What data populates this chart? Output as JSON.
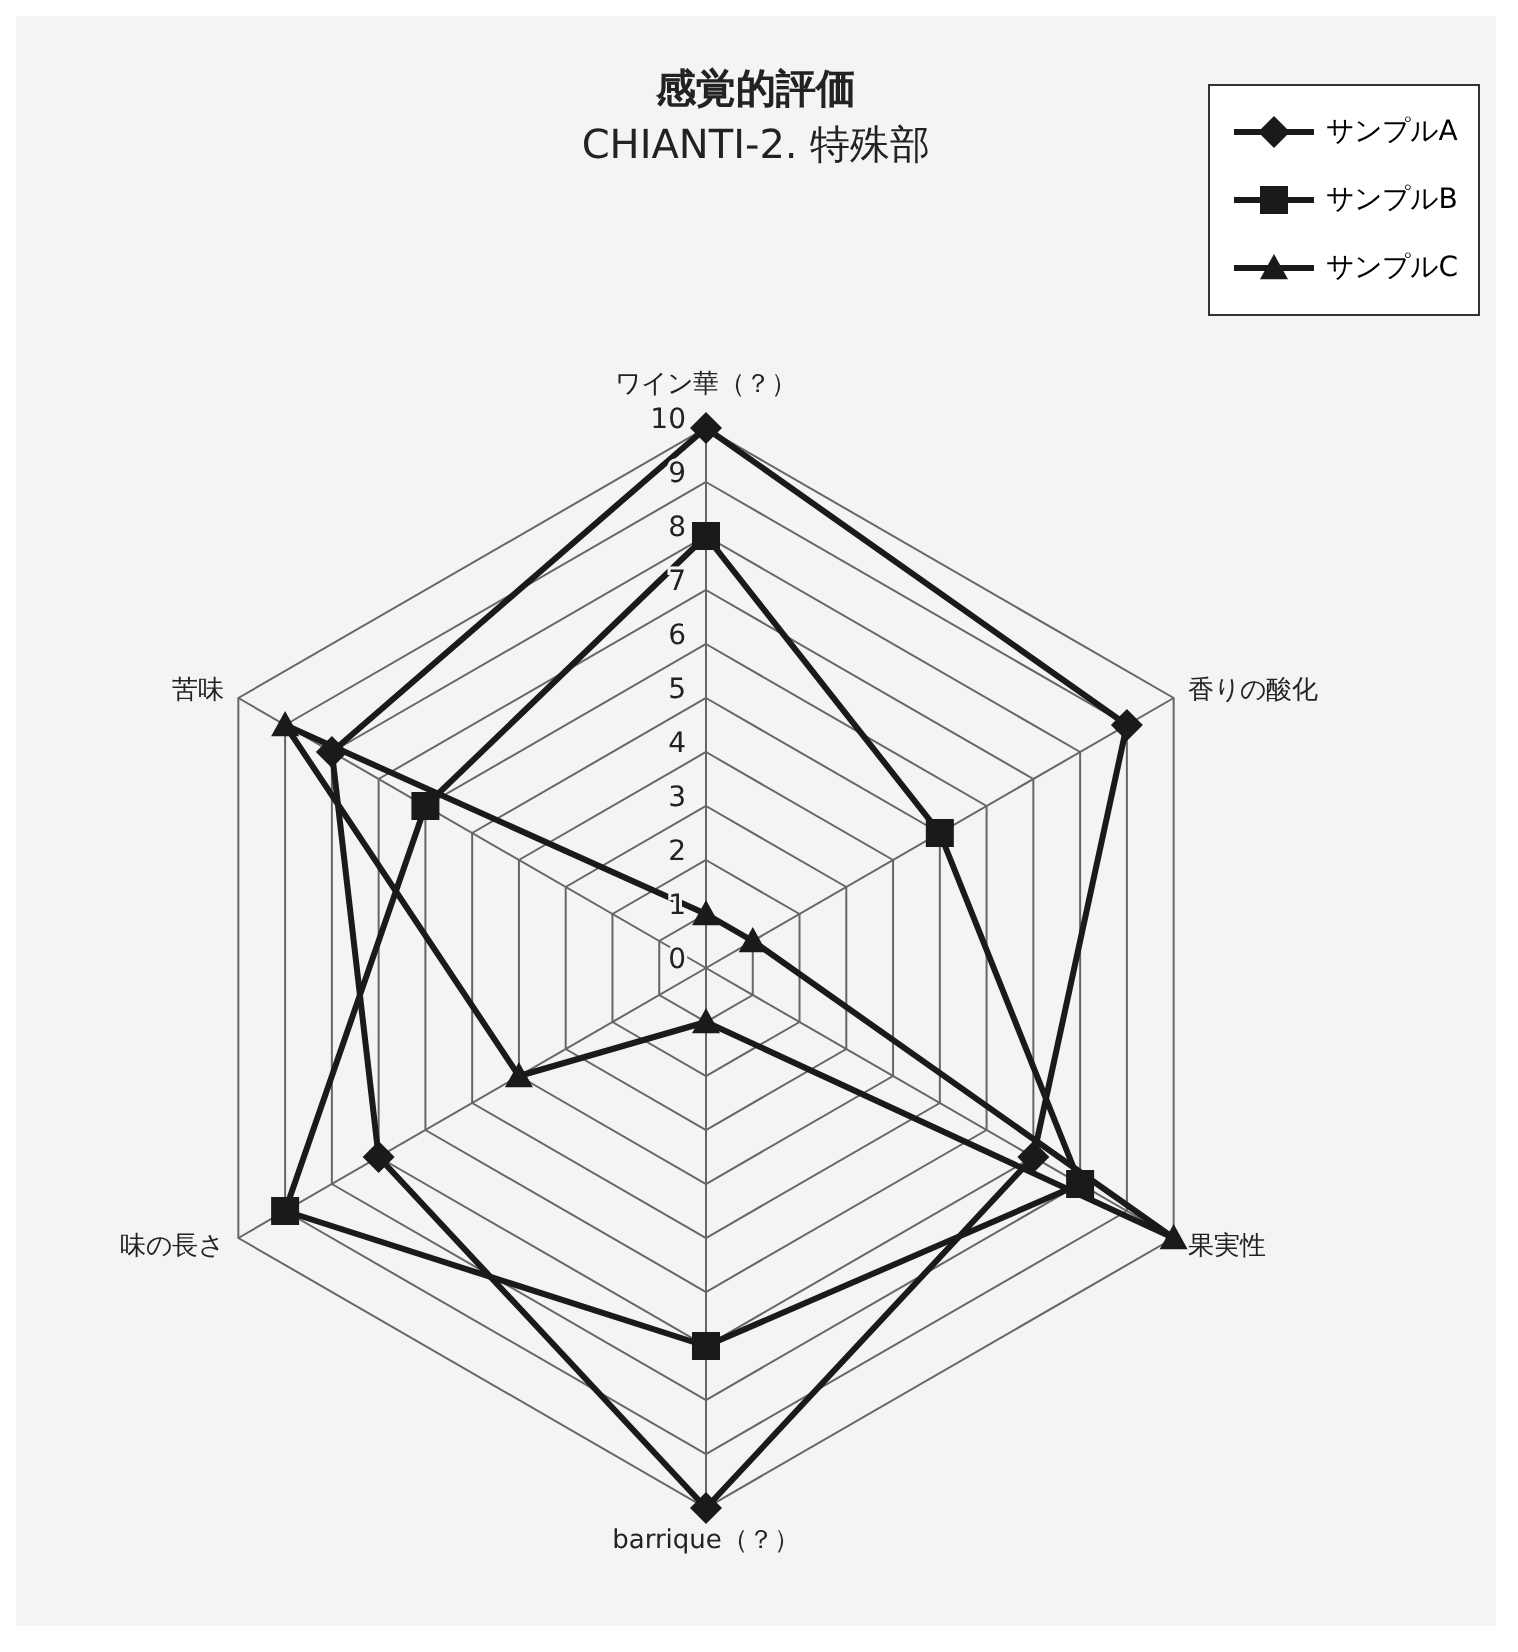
{
  "chart_data": {
    "type": "radar",
    "title": "感覚的評価",
    "subtitle": "CHIANTI-2. 特殊部",
    "categories": [
      "ワイン華（？）",
      "香りの酸化",
      "果実性",
      "barrique（？）",
      "味の長さ",
      "苦味"
    ],
    "series": [
      {
        "name": "サンプルA",
        "color": "#1a1a1a",
        "marker": "diamond",
        "values": [
          10,
          9,
          7,
          10,
          7,
          8
        ]
      },
      {
        "name": "サンプルB",
        "color": "#1a1a1a",
        "marker": "square",
        "values": [
          8,
          5,
          8,
          7,
          9,
          6
        ]
      },
      {
        "name": "サンプルC",
        "color": "#1a1a1a",
        "marker": "triangle",
        "values": [
          1,
          1,
          10,
          1,
          4,
          9
        ]
      }
    ],
    "ylim": [
      0,
      10
    ],
    "yticks": [
      0,
      1,
      2,
      3,
      4,
      5,
      6,
      7,
      8,
      9,
      10
    ],
    "grid": true,
    "legend": "top right"
  }
}
